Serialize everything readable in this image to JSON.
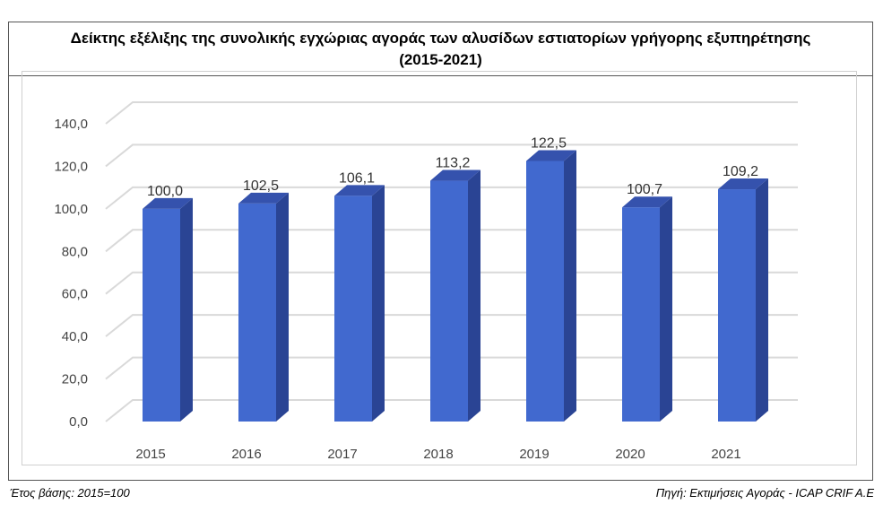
{
  "title_lines": [
    "Δείκτης εξέλιξης της συνολικής εγχώριας αγοράς των αλυσίδων εστιατορίων γρήγορης εξυπηρέτησης",
    "(2015-2021)"
  ],
  "footer": {
    "left": "Έτος βάσης: 2015=100",
    "right": "Πηγή: Εκτιμήσεις Αγοράς - ICAP CRIF A.E"
  },
  "chart_data": {
    "type": "bar",
    "style": "3d-column",
    "categories": [
      "2015",
      "2016",
      "2017",
      "2018",
      "2019",
      "2020",
      "2021"
    ],
    "values": [
      100.0,
      102.5,
      106.1,
      113.2,
      122.5,
      100.7,
      109.2
    ],
    "value_labels": [
      "100,0",
      "102,5",
      "106,1",
      "113,2",
      "122,5",
      "100,7",
      "109,2"
    ],
    "y_ticks": [
      "0,0",
      "20,0",
      "40,0",
      "60,0",
      "80,0",
      "100,0",
      "120,0",
      "140,0"
    ],
    "y_tick_values": [
      0,
      20,
      40,
      60,
      80,
      100,
      120,
      140
    ],
    "ylim": [
      0,
      140
    ],
    "grid": true,
    "legend": "none",
    "colors": {
      "bar_front": "#4169cf",
      "bar_side": "#2a4494",
      "bar_top": "#3552ad",
      "grid": "#d9d9d9"
    }
  }
}
